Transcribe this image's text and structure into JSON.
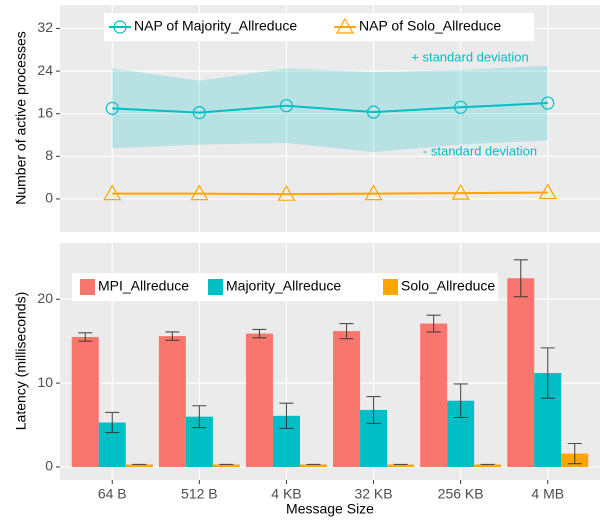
{
  "chart_data": [
    {
      "type": "line",
      "ylabel": "Number of active processes",
      "ylim": [
        -6.2,
        36.4
      ],
      "yticks": [
        0,
        8,
        16,
        24,
        32
      ],
      "grid": true,
      "legend": "top-left",
      "series": [
        {
          "name": "NAP of Majority_Allreduce",
          "color": "#00bfc4",
          "marker": "circle",
          "values": [
            17,
            16.2,
            17.5,
            16.3,
            17.2,
            18
          ],
          "std": [
            7.5,
            6,
            7,
            7.5,
            7,
            7
          ]
        },
        {
          "name": "NAP of Solo_Allreduce",
          "color": "#ffa500",
          "marker": "triangle",
          "values": [
            1,
            1,
            0.9,
            1,
            1.1,
            1.2
          ]
        }
      ],
      "annotations": [
        "+ standard deviation",
        "- standard deviation"
      ]
    },
    {
      "type": "bar",
      "xlabel": "Message Size",
      "ylabel": "Latency (milliseconds)",
      "categories": [
        "64 B",
        "512 B",
        "4 KB",
        "32 KB",
        "256 KB",
        "4 MB"
      ],
      "ylim": [
        -1.55,
        26.7
      ],
      "yticks": [
        0,
        10,
        20
      ],
      "grid": true,
      "legend": "top-left",
      "series": [
        {
          "name": "MPI_Allreduce",
          "color": "#f8766d",
          "values": [
            15.5,
            15.6,
            15.9,
            16.2,
            17.1,
            22.5
          ],
          "errors": [
            0.5,
            0.5,
            0.5,
            0.9,
            1.0,
            2.2
          ]
        },
        {
          "name": "Majority_Allreduce",
          "color": "#00bfc4",
          "values": [
            5.3,
            6.0,
            6.1,
            6.8,
            7.9,
            11.2
          ],
          "errors": [
            1.2,
            1.3,
            1.5,
            1.6,
            2.0,
            3.0
          ]
        },
        {
          "name": "Solo_Allreduce",
          "color": "#ffa500",
          "values": [
            0.3,
            0.3,
            0.3,
            0.3,
            0.3,
            1.6
          ],
          "errors": [
            0,
            0,
            0,
            0,
            0,
            1.2
          ]
        }
      ]
    }
  ]
}
